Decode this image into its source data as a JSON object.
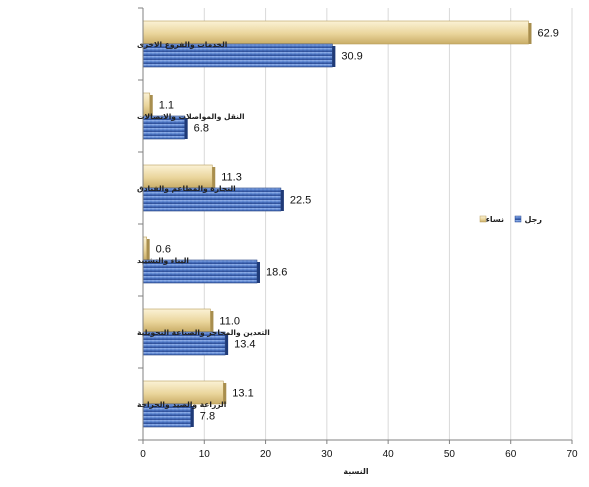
{
  "chart_data": {
    "type": "bar",
    "orientation": "horizontal",
    "categories": [
      "الخدمات والفروع الاخرى",
      "النقل والمواصلات والاتصالات",
      "التجارة والمطاعم والفنادق",
      "البناء والتشييد",
      "التعدين والمحاجر والصناعة التحويلية",
      "الزراعة والصيد والحراجة"
    ],
    "series": [
      {
        "name": "نساء",
        "values": [
          62.9,
          1.1,
          11.3,
          0.6,
          11.0,
          13.1
        ],
        "labels": [
          "62.9",
          "1.1",
          "11.3",
          "0.6",
          "11.0",
          "13.1"
        ],
        "color": "#e9d49a"
      },
      {
        "name": "رجل",
        "values": [
          30.9,
          6.8,
          22.5,
          18.6,
          13.4,
          7.8
        ],
        "labels": [
          "30.9",
          "6.8",
          "22.5",
          "18.6",
          "13.4",
          "7.8"
        ],
        "color": "#4a6fbf"
      }
    ],
    "xlabel": "النسبة",
    "xlim": [
      0,
      70
    ],
    "xticks": [
      0,
      10,
      20,
      30,
      40,
      50,
      60,
      70
    ],
    "grid": true,
    "legend_position": "right"
  }
}
